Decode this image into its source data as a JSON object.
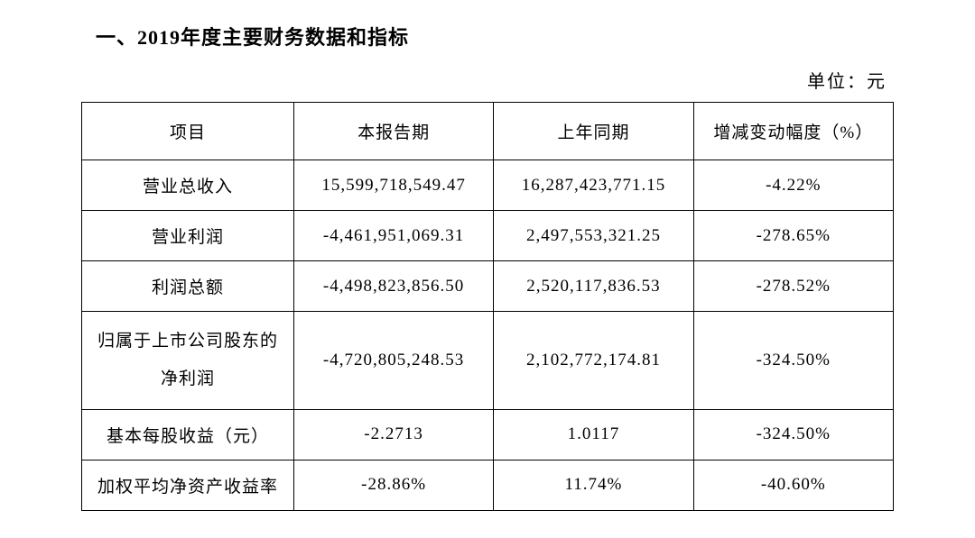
{
  "title": "一、2019年度主要财务数据和指标",
  "unit": "单位：元",
  "table": {
    "headers": [
      "项目",
      "本报告期",
      "上年同期",
      "增减变动幅度（%）"
    ],
    "rows": [
      {
        "item": "营业总收入",
        "current": "15,599,718,549.47",
        "prior": "16,287,423,771.15",
        "change": "-4.22%"
      },
      {
        "item": "营业利润",
        "current": "-4,461,951,069.31",
        "prior": "2,497,553,321.25",
        "change": "-278.65%"
      },
      {
        "item": "利润总额",
        "current": "-4,498,823,856.50",
        "prior": "2,520,117,836.53",
        "change": "-278.52%"
      },
      {
        "item": "归属于上市公司股东的净利润",
        "current": "-4,720,805,248.53",
        "prior": "2,102,772,174.81",
        "change": "-324.50%"
      },
      {
        "item": "基本每股收益（元）",
        "current": "-2.2713",
        "prior": "1.0117",
        "change": "-324.50%"
      },
      {
        "item": "加权平均净资产收益率",
        "current": "-28.86%",
        "prior": "11.74%",
        "change": "-40.60%"
      }
    ]
  }
}
